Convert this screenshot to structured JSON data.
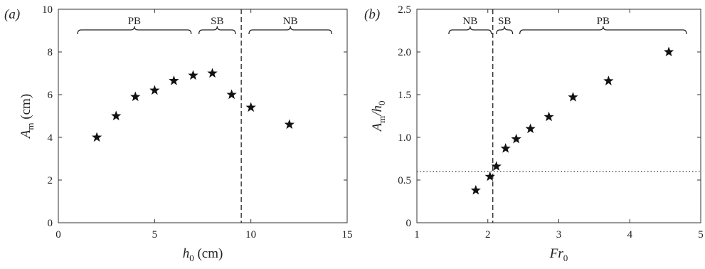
{
  "chart_data": [
    {
      "type": "scatter",
      "panel_label": "(a)",
      "xlabel_main": "h",
      "xlabel_sub": "0",
      "xlabel_unit": " (cm)",
      "ylabel_main": "A",
      "ylabel_sub": "m",
      "ylabel_unit": " (cm)",
      "xlim": [
        0,
        15
      ],
      "ylim": [
        0,
        10
      ],
      "xticks": [
        0,
        5,
        10,
        15
      ],
      "yticks": [
        0,
        2,
        4,
        6,
        8,
        10
      ],
      "points": [
        {
          "x": 2,
          "y": 4.0
        },
        {
          "x": 3,
          "y": 5.0
        },
        {
          "x": 4,
          "y": 5.9
        },
        {
          "x": 5,
          "y": 6.2
        },
        {
          "x": 6,
          "y": 6.65
        },
        {
          "x": 7,
          "y": 6.9
        },
        {
          "x": 8,
          "y": 7.0
        },
        {
          "x": 9,
          "y": 6.0
        },
        {
          "x": 10,
          "y": 5.4
        },
        {
          "x": 12,
          "y": 4.6
        }
      ],
      "vline_x": 9.5,
      "regions": [
        {
          "label": "PB",
          "x_start": 1.0,
          "x_end": 6.9
        },
        {
          "label": "SB",
          "x_start": 7.3,
          "x_end": 9.2
        },
        {
          "label": "NB",
          "x_start": 9.9,
          "x_end": 14.2
        }
      ],
      "grid": false
    },
    {
      "type": "scatter",
      "panel_label": "(b)",
      "xlabel_main": "Fr",
      "xlabel_sub": "0",
      "xlabel_unit": "",
      "ylabel_main": "A",
      "ylabel_sub": "m",
      "ylabel_mid": "/h",
      "ylabel_sub2": "0",
      "xlim": [
        1,
        5
      ],
      "ylim": [
        0,
        2.5
      ],
      "xticks": [
        1,
        2,
        3,
        4,
        5
      ],
      "yticks": [
        0,
        0.5,
        1.0,
        1.5,
        2.0,
        2.5
      ],
      "ytick_labels": [
        "0",
        "0.5",
        "1.0",
        "1.5",
        "2.0",
        "2.5"
      ],
      "points": [
        {
          "x": 1.83,
          "y": 0.38
        },
        {
          "x": 2.03,
          "y": 0.54
        },
        {
          "x": 2.12,
          "y": 0.66
        },
        {
          "x": 2.25,
          "y": 0.87
        },
        {
          "x": 2.4,
          "y": 0.98
        },
        {
          "x": 2.6,
          "y": 1.1
        },
        {
          "x": 2.86,
          "y": 1.24
        },
        {
          "x": 3.2,
          "y": 1.47
        },
        {
          "x": 3.7,
          "y": 1.66
        },
        {
          "x": 4.55,
          "y": 2.0
        }
      ],
      "vline_x": 2.07,
      "hline_y": 0.6,
      "regions": [
        {
          "label": "NB",
          "x_start": 1.45,
          "x_end": 2.05
        },
        {
          "label": "SB",
          "x_start": 2.12,
          "x_end": 2.35
        },
        {
          "label": "PB",
          "x_start": 2.45,
          "x_end": 4.8
        }
      ],
      "grid": false
    }
  ]
}
